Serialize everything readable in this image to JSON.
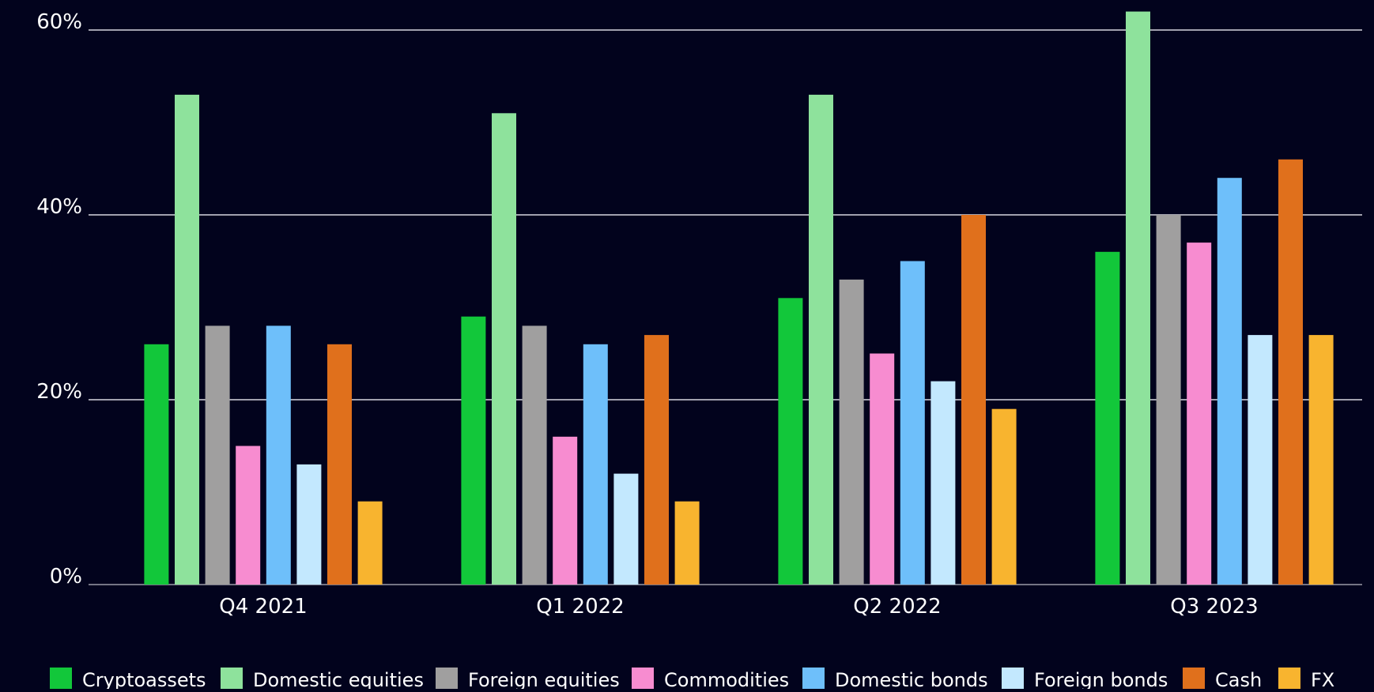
{
  "chart_data": {
    "type": "bar",
    "title": "",
    "xlabel": "",
    "ylabel": "",
    "ylim": [
      0,
      60
    ],
    "y_ticks": [
      0,
      20,
      40,
      60
    ],
    "y_tick_labels": [
      "0%",
      "20%",
      "40%",
      "60%"
    ],
    "grid": "horizontal",
    "legend_position": "bottom",
    "categories": [
      "Q4 2021",
      "Q1 2022",
      "Q2 2022",
      "Q3 2023"
    ],
    "series": [
      {
        "name": "Cryptoassets",
        "color": "#12c73a",
        "values": [
          26,
          29,
          31,
          36
        ]
      },
      {
        "name": "Domestic equities",
        "color": "#8ee29c",
        "values": [
          53,
          51,
          53,
          62
        ]
      },
      {
        "name": "Foreign equities",
        "color": "#a09f9f",
        "values": [
          28,
          28,
          33,
          40
        ]
      },
      {
        "name": "Commodities",
        "color": "#f78cd0",
        "values": [
          15,
          16,
          25,
          37
        ]
      },
      {
        "name": "Domestic bonds",
        "color": "#6ebffa",
        "values": [
          28,
          26,
          35,
          44
        ]
      },
      {
        "name": "Foreign bonds",
        "color": "#c3e8fe",
        "values": [
          13,
          12,
          22,
          27
        ]
      },
      {
        "name": "Cash",
        "color": "#e0701c",
        "values": [
          26,
          27,
          40,
          46
        ]
      },
      {
        "name": "FX",
        "color": "#f8b42f",
        "values": [
          9,
          9,
          19,
          27
        ]
      }
    ]
  },
  "colors": {
    "background": "#02031d",
    "gridline": "#d6d6de",
    "text": "#ffffff"
  }
}
